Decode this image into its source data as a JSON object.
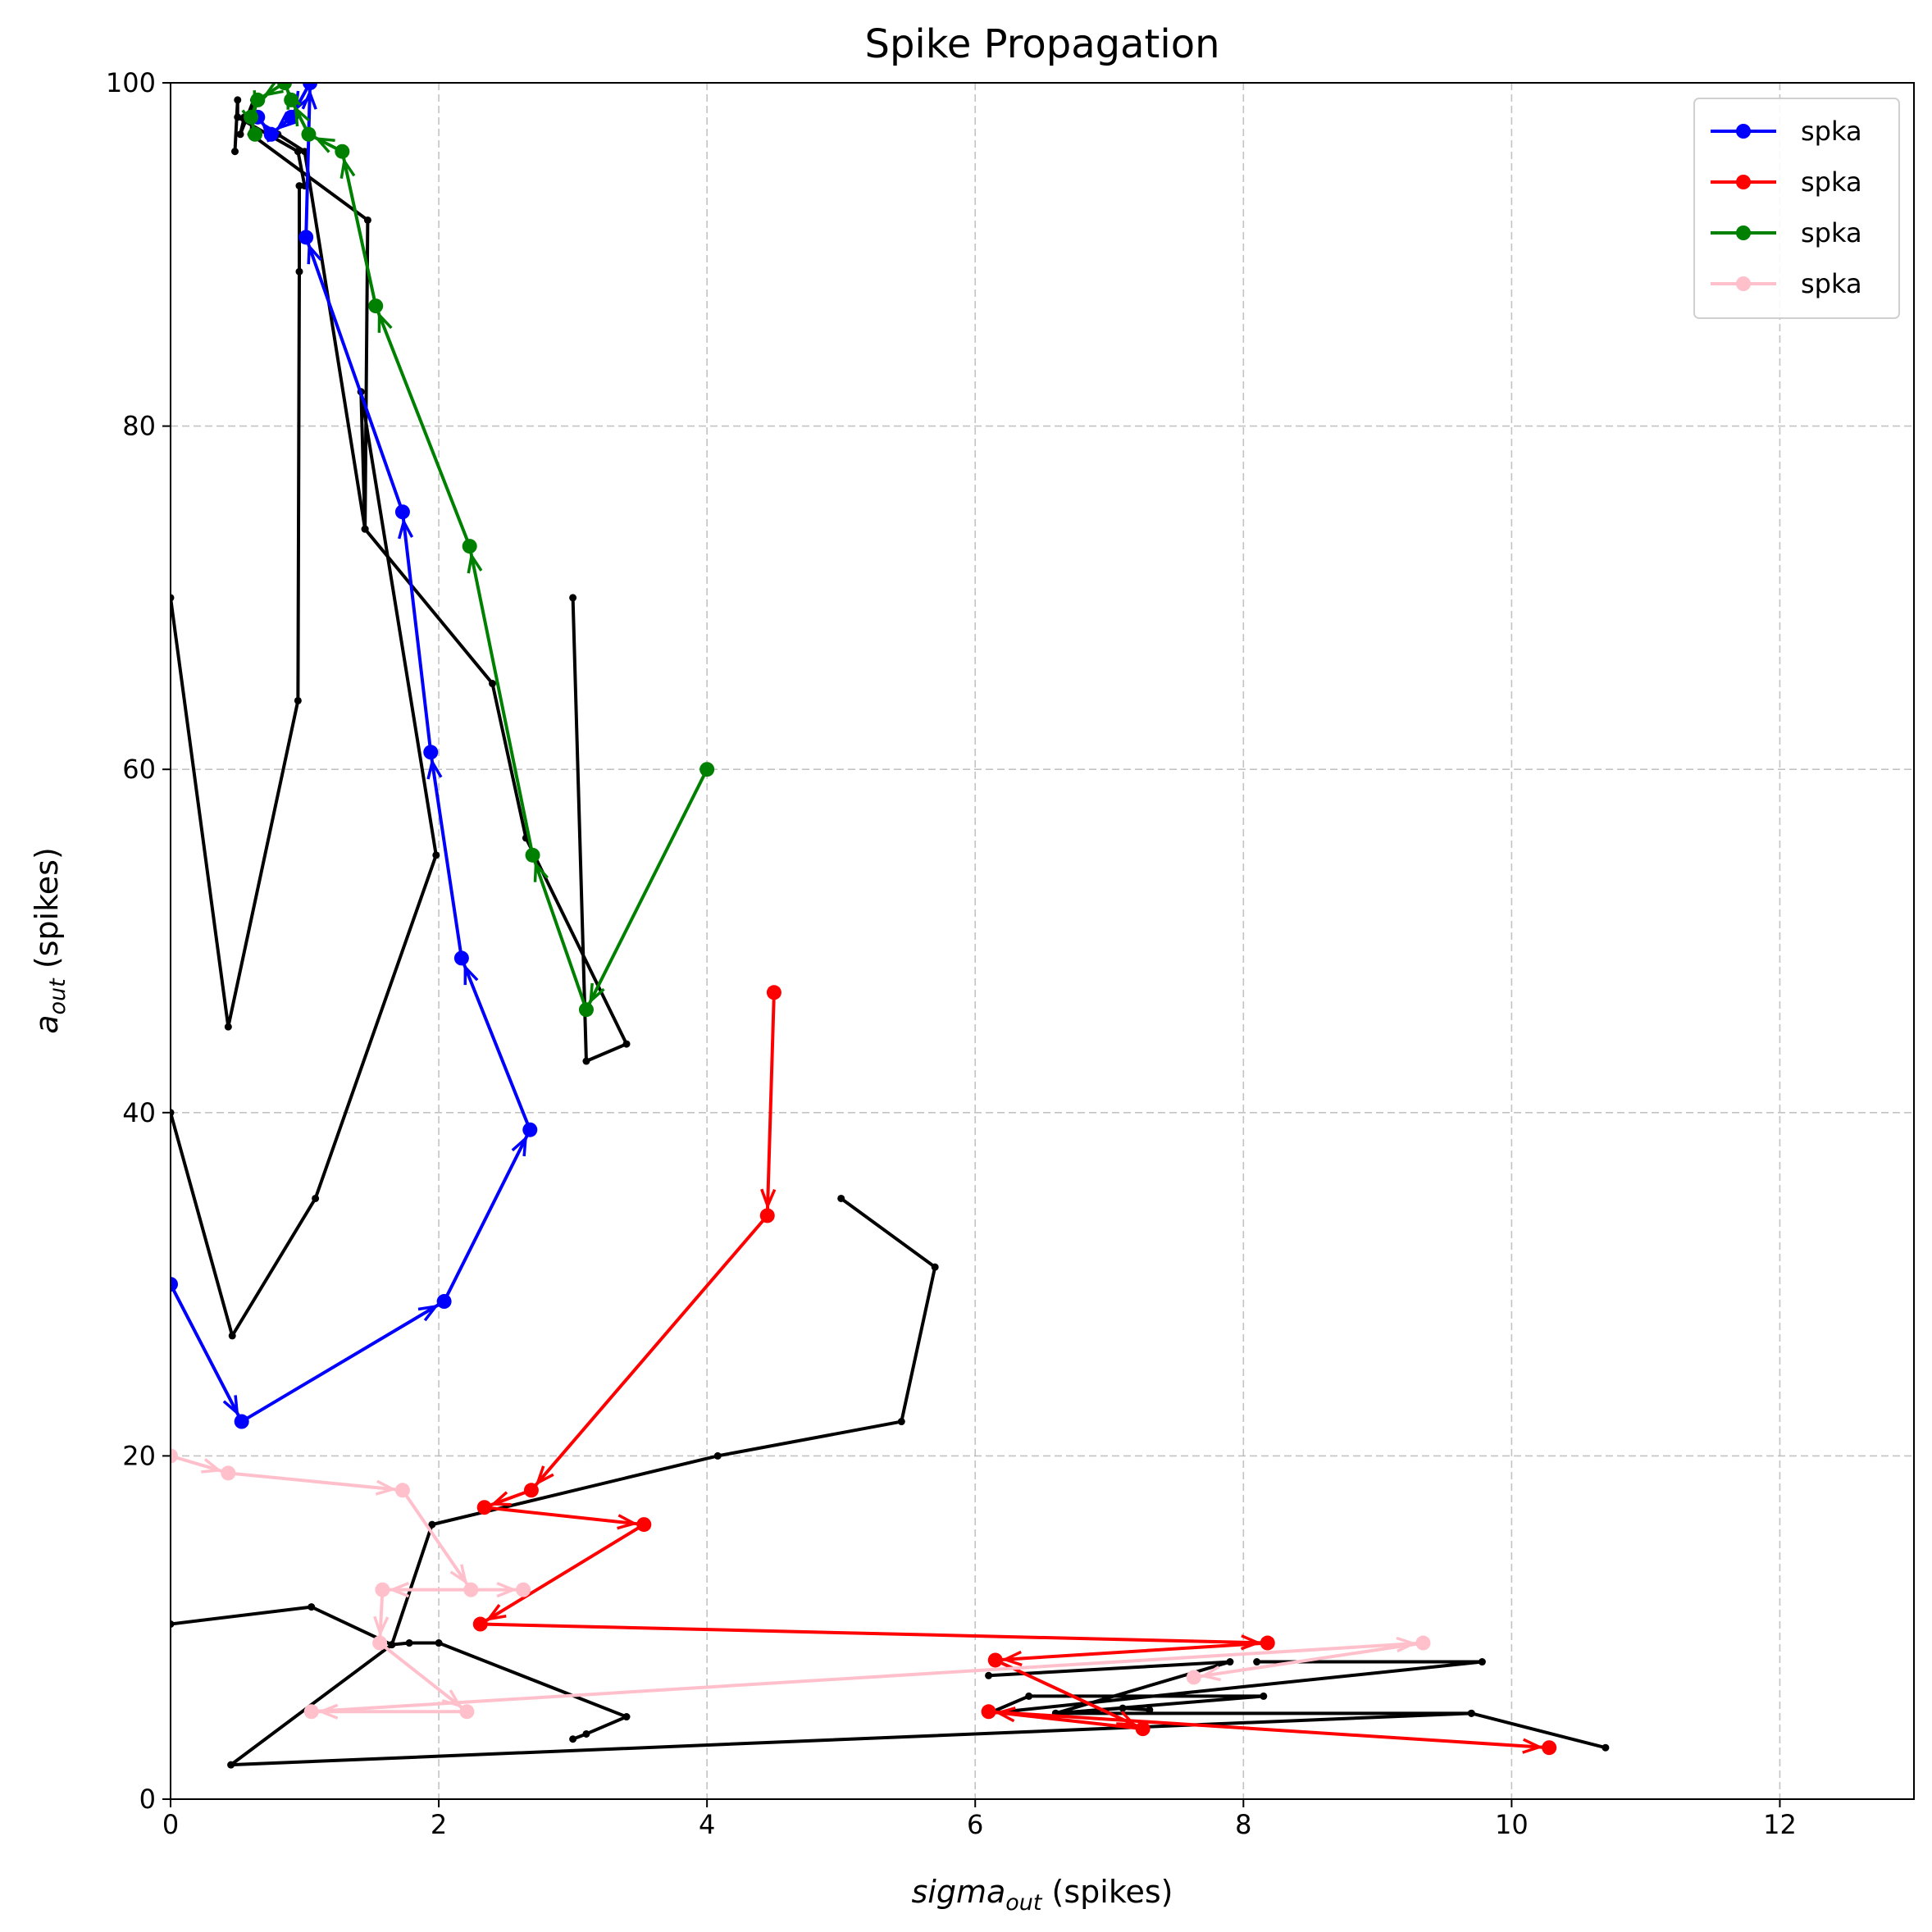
{
  "chart_data": {
    "type": "line",
    "title": "Spike Propagation",
    "xlabel": {
      "main": "sigma",
      "sub": "out",
      "suffix": " (spikes)"
    },
    "ylabel": {
      "main": "a",
      "sub": "out",
      "suffix": " (spikes)"
    },
    "xlim": [
      0,
      13
    ],
    "ylim": [
      0,
      100
    ],
    "xticks": [
      0,
      2,
      4,
      6,
      8,
      10,
      12
    ],
    "yticks": [
      0,
      20,
      40,
      60,
      80,
      100
    ],
    "xtick_labels": [
      "0",
      "2",
      "4",
      "6",
      "8",
      "10",
      "12"
    ],
    "ytick_labels": [
      "0",
      "20",
      "40",
      "60",
      "80",
      "100"
    ],
    "grid": true,
    "legend_position": "top-right",
    "background_traces": [
      {
        "color": "#000000",
        "x": [
          0,
          0.43,
          0.95,
          0.96,
          0.96,
          1.0,
          0.95,
          0.5,
          0.5,
          0.48
        ],
        "y": [
          70,
          45,
          64,
          89,
          94,
          94,
          96,
          98,
          99,
          96
        ]
      },
      {
        "color": "#000000",
        "x": [
          0,
          0.46,
          1.08,
          1.98,
          1.42,
          1.42,
          1.45,
          1.47,
          0.6,
          0.6,
          0.62,
          0.52,
          0.55
        ],
        "y": [
          40,
          27,
          35,
          55,
          82,
          82,
          74,
          92,
          97,
          97,
          99,
          97,
          98
        ]
      },
      {
        "color": "#000000",
        "x": [
          0,
          1.05,
          1.65,
          1.78,
          2.0,
          3.4,
          3.1,
          3.0
        ],
        "y": [
          10.2,
          11.2,
          9,
          9.1,
          9.1,
          4.8,
          3.8,
          3.5
        ]
      },
      {
        "color": "#000000",
        "x": [
          5.0,
          5.7,
          5.45,
          4.08,
          1.95,
          1.65,
          0.45,
          9.7
        ],
        "y": [
          35,
          31,
          22,
          20,
          16,
          9,
          2,
          5
        ]
      },
      {
        "color": "#000000",
        "x": [
          6.1,
          7.9,
          6.6,
          8.15,
          6.4,
          6.1,
          9.78,
          8.1
        ],
        "y": [
          7.2,
          8,
          5,
          6,
          6,
          5,
          8,
          8
        ]
      },
      {
        "color": "#000000",
        "x": [
          7.3,
          7.1,
          6.6,
          9.7,
          10.7
        ],
        "y": [
          5.2,
          5.3,
          5,
          5,
          3
        ]
      },
      {
        "color": "#000000",
        "x": [
          0.8,
          1.0,
          1.45,
          2.4,
          2.65,
          3.4,
          3.1,
          3.0
        ],
        "y": [
          97,
          96,
          74,
          65,
          56,
          44,
          43,
          70
        ]
      }
    ],
    "series": [
      {
        "name": "spka",
        "color": "#0000ff",
        "x": [
          0,
          0.53,
          2.04,
          2.68,
          2.17,
          1.94,
          1.73,
          1.01,
          1.04,
          0.9,
          0.75,
          0.65
        ],
        "y": [
          30,
          22,
          29,
          39,
          49,
          61,
          75,
          91,
          100,
          98,
          97,
          98
        ]
      },
      {
        "name": "spka",
        "color": "#ff0000",
        "x": [
          4.5,
          4.45,
          2.69,
          2.34,
          3.53,
          2.31,
          8.18,
          6.15,
          7.25,
          6.1,
          10.28
        ],
        "y": [
          47,
          34,
          18,
          17,
          16,
          10.2,
          9.1,
          8.1,
          4.1,
          5.1,
          3
        ]
      },
      {
        "name": "spka",
        "color": "#008000",
        "x": [
          4.0,
          3.1,
          2.7,
          2.23,
          1.53,
          1.28,
          1.03,
          0.9,
          0.85,
          0.65,
          0.6,
          0.63
        ],
        "y": [
          60,
          46,
          55,
          73,
          87,
          96,
          97,
          99,
          100,
          99,
          98,
          97
        ]
      },
      {
        "name": "spka",
        "color": "#ffc0cb",
        "x": [
          0,
          0.43,
          1.73,
          2.24,
          2.63,
          1.58,
          1.56,
          2.21,
          1.05,
          9.34,
          7.63
        ],
        "y": [
          20,
          19,
          18,
          12.2,
          12.2,
          12.2,
          9.1,
          5.1,
          5.1,
          9.1,
          7.1
        ]
      }
    ]
  }
}
